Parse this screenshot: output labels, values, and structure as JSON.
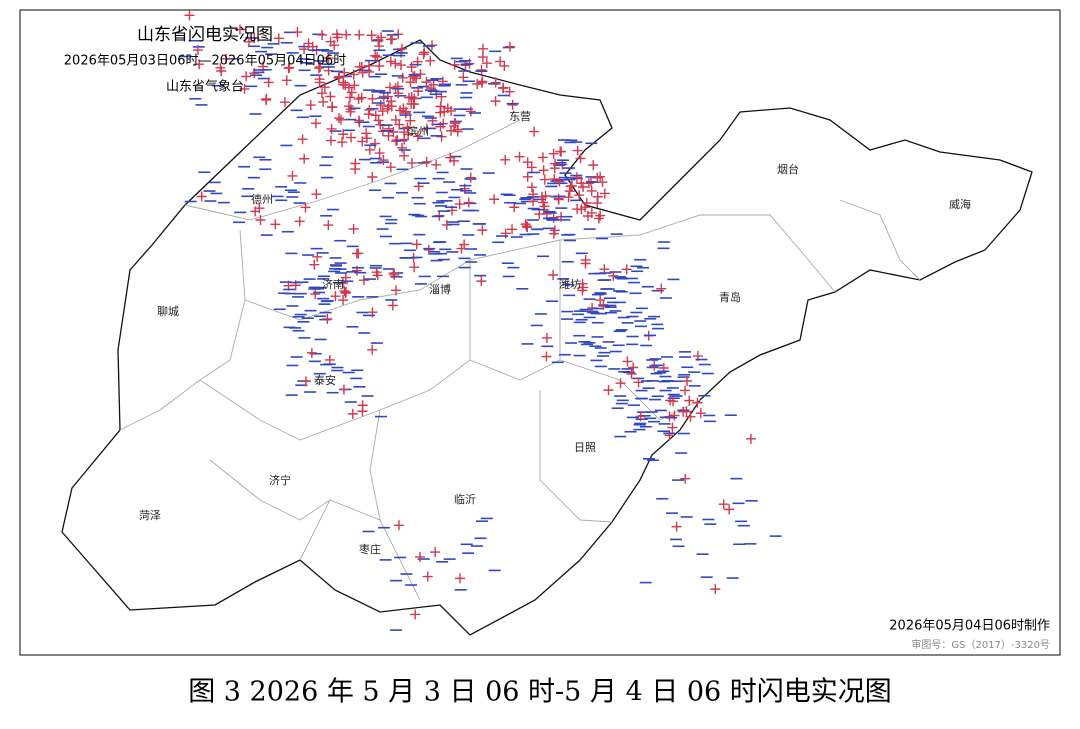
{
  "map": {
    "title": "山东省闪电实况图",
    "period": "2026年05月03日06时—2026年05月04日06时",
    "agency": "山东省气象台",
    "cities": [
      "烟台",
      "威海",
      "东营",
      "滨州",
      "德州",
      "济南",
      "淄博",
      "潍坊",
      "青岛",
      "聊城",
      "泰安",
      "日照",
      "济宁",
      "临沂",
      "菏泽",
      "枣庄"
    ],
    "made": "2026年05月04日06时制作",
    "review": "审图号：GS（2017）-3320号"
  },
  "caption": "图 3 2026 年 5 月 3 日 06 时-5 月 4 日 06 时闪电实况图"
}
